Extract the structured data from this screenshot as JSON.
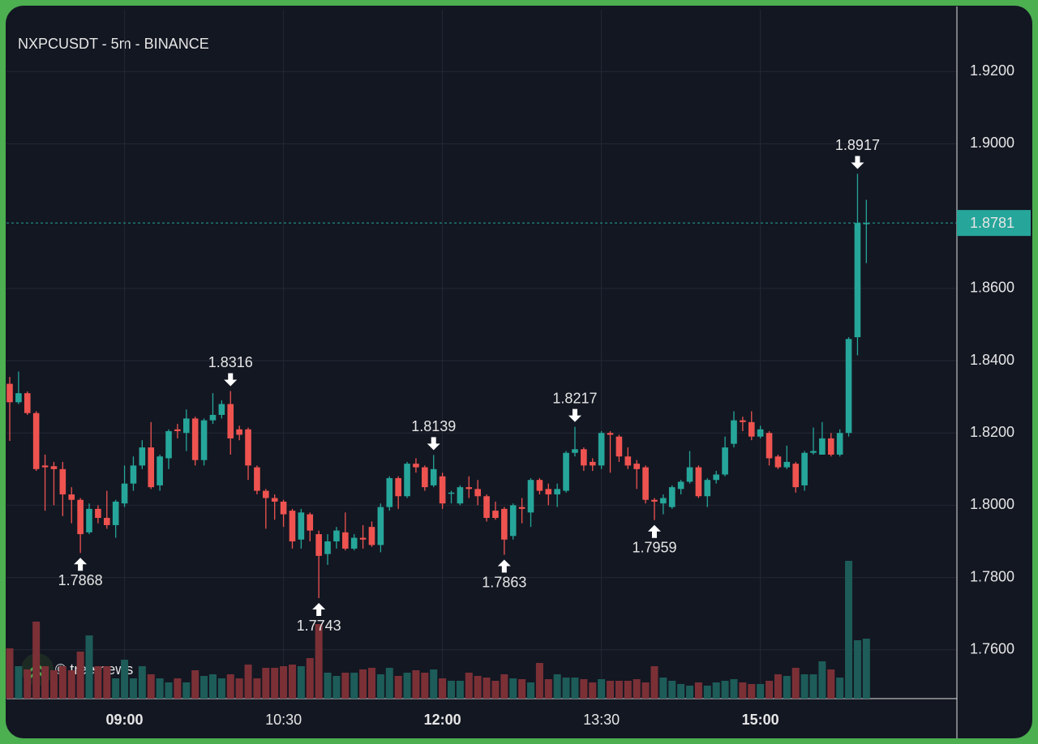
{
  "chart_data": {
    "type": "candlestick",
    "title": "NXPCUSDT - 5m - BINANCE",
    "watermark": "© tree.news",
    "categories": [
      null,
      null,
      null,
      null,
      null,
      null,
      null,
      null,
      null,
      null,
      null,
      null,
      null,
      "09:00",
      null,
      null,
      null,
      null,
      null,
      null,
      null,
      null,
      null,
      null,
      null,
      null,
      null,
      null,
      null,
      null,
      null,
      "10:30",
      null,
      null,
      null,
      null,
      null,
      null,
      null,
      null,
      null,
      null,
      null,
      null,
      null,
      null,
      null,
      null,
      null,
      "12:00",
      null,
      null,
      null,
      null,
      null,
      null,
      null,
      null,
      null,
      null,
      null,
      null,
      null,
      null,
      null,
      null,
      null,
      "13:30",
      null,
      null,
      null,
      null,
      null,
      null,
      null,
      null,
      null,
      null,
      null,
      null,
      null,
      null,
      null,
      null,
      null,
      "15:00",
      null,
      null,
      null,
      null,
      null,
      null,
      null,
      null,
      null,
      null,
      null,
      null
    ],
    "open": [
      1.8336,
      1.8285,
      1.831,
      1.8255,
      1.811,
      1.8108,
      1.81,
      1.803,
      1.8015,
      1.7925,
      1.799,
      1.7965,
      1.7945,
      1.8005,
      1.806,
      1.811,
      1.816,
      1.8055,
      1.813,
      1.821,
      1.82,
      1.824,
      1.8125,
      1.8235,
      1.825,
      1.828,
      1.821,
      1.821,
      1.8105,
      1.804,
      1.802,
      1.801,
      1.7985,
      1.7905,
      1.7975,
      1.792,
      1.7865,
      1.79,
      1.7925,
      1.788,
      1.791,
      1.794,
      1.789,
      1.7995,
      1.8075,
      1.8025,
      1.8115,
      1.8105,
      1.8055,
      1.808,
      1.8035,
      1.8005,
      1.805,
      1.8045,
      1.8025,
      1.7985,
      1.799,
      1.7915,
      1.7995,
      1.798,
      1.807,
      1.8045,
      1.803,
      1.804,
      1.8145,
      1.8155,
      1.812,
      1.811,
      1.82,
      1.819,
      1.8135,
      1.8115,
      1.8105,
      1.8015,
      1.8005,
      1.7995,
      1.8045,
      1.8065,
      1.8105,
      1.8025,
      1.807,
      1.8085,
      1.817,
      1.8235,
      1.823,
      1.819,
      1.82,
      1.8135,
      1.8105,
      1.8115,
      1.8055,
      1.8145,
      1.814,
      1.8185,
      1.814,
      1.82,
      1.8465,
      1.8781
    ],
    "high": [
      1.8355,
      1.837,
      1.8315,
      1.826,
      1.814,
      1.812,
      1.812,
      1.805,
      1.802,
      1.8005,
      1.8,
      1.804,
      1.8015,
      1.811,
      1.8135,
      1.818,
      1.823,
      1.814,
      1.821,
      1.8225,
      1.8265,
      1.8245,
      1.824,
      1.831,
      1.829,
      1.8316,
      1.822,
      1.8215,
      1.811,
      1.8045,
      1.803,
      1.8015,
      1.799,
      1.799,
      1.798,
      1.793,
      1.792,
      1.794,
      1.798,
      1.792,
      1.7945,
      1.7955,
      1.8005,
      1.808,
      1.808,
      1.812,
      1.813,
      1.811,
      1.8139,
      1.809,
      1.804,
      1.8055,
      1.808,
      1.807,
      1.803,
      1.801,
      1.7995,
      1.8005,
      1.802,
      1.8075,
      1.8075,
      1.806,
      1.806,
      1.815,
      1.8217,
      1.816,
      1.813,
      1.8205,
      1.8205,
      1.8195,
      1.816,
      1.8125,
      1.811,
      1.802,
      1.803,
      1.8055,
      1.807,
      1.815,
      1.811,
      1.8075,
      1.8095,
      1.819,
      1.826,
      1.8245,
      1.826,
      1.822,
      1.8205,
      1.814,
      1.8165,
      1.812,
      1.815,
      1.8215,
      1.823,
      1.82,
      1.821,
      1.8465,
      1.8917,
      1.8845
    ],
    "low": [
      1.8178,
      1.828,
      1.825,
      1.8095,
      1.7985,
      1.8,
      1.797,
      1.795,
      1.7868,
      1.792,
      1.795,
      1.7935,
      1.791,
      1.7995,
      1.804,
      1.81,
      1.8045,
      1.804,
      1.81,
      1.8185,
      1.815,
      1.811,
      1.811,
      1.8225,
      1.824,
      1.814,
      1.818,
      1.807,
      1.803,
      1.7935,
      1.796,
      1.794,
      1.788,
      1.788,
      1.79,
      1.7743,
      1.7835,
      1.788,
      1.7875,
      1.7875,
      1.788,
      1.7885,
      1.787,
      1.7985,
      1.799,
      1.802,
      1.809,
      1.804,
      1.805,
      1.799,
      1.8005,
      1.8,
      1.802,
      1.8,
      1.7955,
      1.796,
      1.7863,
      1.7905,
      1.795,
      1.794,
      1.803,
      1.8,
      1.7995,
      1.8035,
      1.8135,
      1.8095,
      1.8095,
      1.81,
      1.809,
      1.812,
      1.81,
      1.8045,
      1.8005,
      1.7959,
      1.7975,
      1.799,
      1.803,
      1.806,
      1.802,
      1.7995,
      1.806,
      1.808,
      1.816,
      1.8205,
      1.818,
      1.8185,
      1.811,
      1.81,
      1.81,
      1.8035,
      1.804,
      1.814,
      1.814,
      1.8135,
      1.8135,
      1.819,
      1.8415,
      1.867
    ],
    "close": [
      1.8285,
      1.831,
      1.8255,
      1.81,
      1.8105,
      1.81,
      1.803,
      1.8015,
      1.792,
      1.799,
      1.7965,
      1.7945,
      1.801,
      1.806,
      1.811,
      1.816,
      1.805,
      1.8135,
      1.8205,
      1.8205,
      1.824,
      1.8125,
      1.8235,
      1.825,
      1.828,
      1.8185,
      1.8195,
      1.811,
      1.804,
      1.802,
      1.801,
      1.7975,
      1.79,
      1.798,
      1.793,
      1.786,
      1.79,
      1.793,
      1.788,
      1.791,
      1.7905,
      1.789,
      1.7995,
      1.8075,
      1.8025,
      1.8115,
      1.8105,
      1.805,
      1.81,
      1.8005,
      1.8035,
      1.805,
      1.8045,
      1.8025,
      1.7965,
      1.7965,
      1.7905,
      1.8,
      1.799,
      1.807,
      1.804,
      1.803,
      1.8045,
      1.8145,
      1.8155,
      1.811,
      1.811,
      1.82,
      1.8195,
      1.8135,
      1.811,
      1.81,
      1.8015,
      1.801,
      1.802,
      1.805,
      1.8065,
      1.8105,
      1.8025,
      1.807,
      1.8085,
      1.816,
      1.8235,
      1.823,
      1.819,
      1.821,
      1.813,
      1.8105,
      1.812,
      1.805,
      1.8145,
      1.815,
      1.8185,
      1.814,
      1.82,
      1.846,
      1.8781,
      1.8781
    ],
    "volume": [
      62,
      40,
      36,
      95,
      40,
      35,
      40,
      35,
      58,
      78,
      40,
      40,
      25,
      48,
      25,
      40,
      30,
      25,
      20,
      25,
      20,
      35,
      28,
      30,
      25,
      30,
      25,
      42,
      25,
      38,
      38,
      40,
      42,
      40,
      50,
      92,
      32,
      28,
      32,
      32,
      36,
      38,
      30,
      38,
      28,
      32,
      35,
      32,
      36,
      25,
      22,
      22,
      32,
      28,
      26,
      22,
      30,
      25,
      24,
      20,
      44,
      24,
      30,
      26,
      26,
      24,
      20,
      24,
      22,
      22,
      22,
      24,
      20,
      40,
      26,
      22,
      18,
      16,
      20,
      16,
      20,
      22,
      24,
      20,
      18,
      18,
      22,
      30,
      28,
      38,
      30,
      30,
      46,
      36,
      26,
      170,
      72,
      74
    ],
    "marked_highs": [
      25,
      48,
      64,
      96
    ],
    "marked_lows": [
      8,
      35,
      56,
      73
    ],
    "up_color": "#26a69a",
    "down_color": "#ef5350",
    "up_volume_color": "#1d5c58",
    "down_volume_color": "#7b3036",
    "ylim": [
      1.7465,
      1.938
    ],
    "yticks": [
      {
        "value": 1.76,
        "label": "1.7600"
      },
      {
        "value": 1.78,
        "label": "1.7800"
      },
      {
        "value": 1.8,
        "label": "1.8000"
      },
      {
        "value": 1.82,
        "label": "1.8200"
      },
      {
        "value": 1.84,
        "label": "1.8400"
      },
      {
        "value": 1.86,
        "label": "1.8600"
      },
      {
        "value": 1.9,
        "label": "1.9000"
      },
      {
        "value": 1.92,
        "label": "1.9200"
      }
    ],
    "grid": true
  }
}
